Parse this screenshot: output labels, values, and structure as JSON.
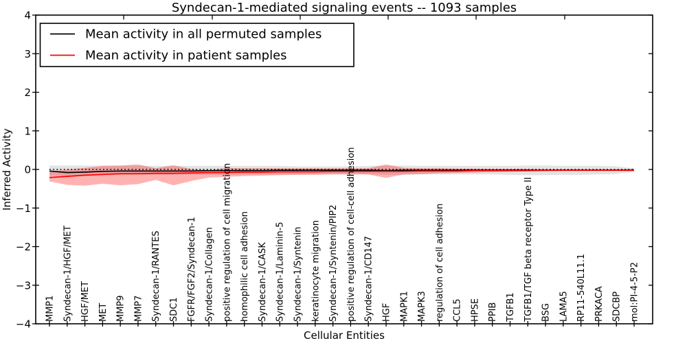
{
  "chart_data": {
    "type": "line",
    "title": "Syndecan-1-mediated signaling events -- 1093 samples",
    "xlabel": "Cellular Entities",
    "ylabel": "Inferred Activity",
    "ylim": [
      -4,
      4
    ],
    "yticks": [
      4,
      3,
      2,
      1,
      0,
      -1,
      -2,
      -3,
      -4
    ],
    "ytick_labels": [
      "4",
      "3",
      "2",
      "1",
      "0",
      "−1",
      "−2",
      "−3",
      "−4"
    ],
    "grid": false,
    "legend_position": "upper left",
    "zero_line": {
      "y": 0,
      "style": "dotted",
      "color": "#000000"
    },
    "categories": [
      "MMP1",
      "Syndecan-1/HGF/MET",
      "HGF/MET",
      "MET",
      "MMP9",
      "MMP7",
      "Syndecan-1/RANTES",
      "SDC1",
      "FGFR/FGF2/Syndecan-1",
      "Syndecan-1/Collagen",
      "positive regulation of cell migration",
      "homophilic cell adhesion",
      "Syndecan-1/CASK",
      "Syndecan-1/Laminin-5",
      "Syndecan-1/Syntenin",
      "keratinocyte migration",
      "Syndecan-1/Syntenin/PIP2",
      "positive regulation of cell-cell adhesion",
      "Syndecan-1/CD147",
      "HGF",
      "MAPK1",
      "MAPK3",
      "regulation of cell adhesion",
      "CCL5",
      "HPSE",
      "PPIB",
      "TGFB1",
      "TGFB1/TGF beta receptor Type II",
      "BSG",
      "LAMA5",
      "RP11-540L11.1",
      "PRKACA",
      "SDCBP",
      "mol:PI-4-5-P2"
    ],
    "series": [
      {
        "name": "Mean activity in all permuted samples",
        "color": "#000000",
        "band_color": "#999999",
        "band_opacity": 0.28,
        "values": [
          -0.04,
          -0.08,
          -0.07,
          -0.05,
          -0.04,
          -0.04,
          -0.04,
          -0.04,
          -0.04,
          -0.03,
          -0.03,
          -0.03,
          -0.03,
          -0.02,
          -0.02,
          -0.02,
          -0.02,
          -0.02,
          -0.02,
          -0.03,
          -0.02,
          -0.02,
          -0.02,
          -0.02,
          -0.02,
          -0.02,
          -0.02,
          -0.02,
          -0.02,
          -0.02,
          -0.02,
          -0.02,
          -0.02,
          -0.02
        ],
        "band_upper": [
          0.1,
          0.1,
          0.1,
          0.1,
          0.1,
          0.1,
          0.09,
          0.09,
          0.09,
          0.09,
          0.09,
          0.09,
          0.09,
          0.09,
          0.08,
          0.08,
          0.08,
          0.08,
          0.09,
          0.1,
          0.1,
          0.09,
          0.09,
          0.09,
          0.09,
          0.09,
          0.09,
          0.1,
          0.1,
          0.09,
          0.09,
          0.09,
          0.08,
          0.03
        ],
        "band_lower": [
          -0.15,
          -0.17,
          -0.16,
          -0.15,
          -0.15,
          -0.15,
          -0.14,
          -0.14,
          -0.14,
          -0.14,
          -0.14,
          -0.13,
          -0.13,
          -0.13,
          -0.13,
          -0.12,
          -0.12,
          -0.12,
          -0.13,
          -0.14,
          -0.14,
          -0.13,
          -0.13,
          -0.13,
          -0.13,
          -0.13,
          -0.14,
          -0.15,
          -0.15,
          -0.14,
          -0.14,
          -0.13,
          -0.12,
          -0.05
        ]
      },
      {
        "name": "Mean activity in patient samples",
        "color": "#ff0000",
        "band_color": "#ff0000",
        "band_opacity": 0.3,
        "values": [
          -0.21,
          -0.18,
          -0.15,
          -0.13,
          -0.11,
          -0.11,
          -0.1,
          -0.1,
          -0.09,
          -0.08,
          -0.08,
          -0.07,
          -0.07,
          -0.06,
          -0.06,
          -0.06,
          -0.05,
          -0.05,
          -0.05,
          -0.05,
          -0.05,
          -0.04,
          -0.04,
          -0.04,
          -0.03,
          -0.03,
          -0.03,
          -0.03,
          -0.02,
          -0.02,
          -0.02,
          -0.02,
          -0.02,
          -0.02
        ],
        "band_upper": [
          -0.06,
          0.0,
          0.04,
          0.09,
          0.1,
          0.13,
          0.03,
          0.11,
          0.01,
          -0.02,
          0.04,
          0.03,
          0.03,
          0.03,
          0.03,
          0.03,
          0.03,
          0.03,
          0.03,
          0.13,
          0.04,
          0.03,
          0.03,
          0.02,
          0.02,
          0.01,
          0.01,
          0.01,
          0.0,
          0.0,
          0.0,
          0.0,
          0.0,
          0.01
        ],
        "band_lower": [
          -0.31,
          -0.4,
          -0.42,
          -0.37,
          -0.41,
          -0.38,
          -0.27,
          -0.41,
          -0.3,
          -0.21,
          -0.19,
          -0.17,
          -0.16,
          -0.15,
          -0.14,
          -0.14,
          -0.13,
          -0.13,
          -0.13,
          -0.22,
          -0.13,
          -0.12,
          -0.1,
          -0.09,
          -0.08,
          -0.07,
          -0.06,
          -0.05,
          -0.05,
          -0.04,
          -0.04,
          -0.04,
          -0.04,
          -0.05
        ]
      }
    ]
  }
}
